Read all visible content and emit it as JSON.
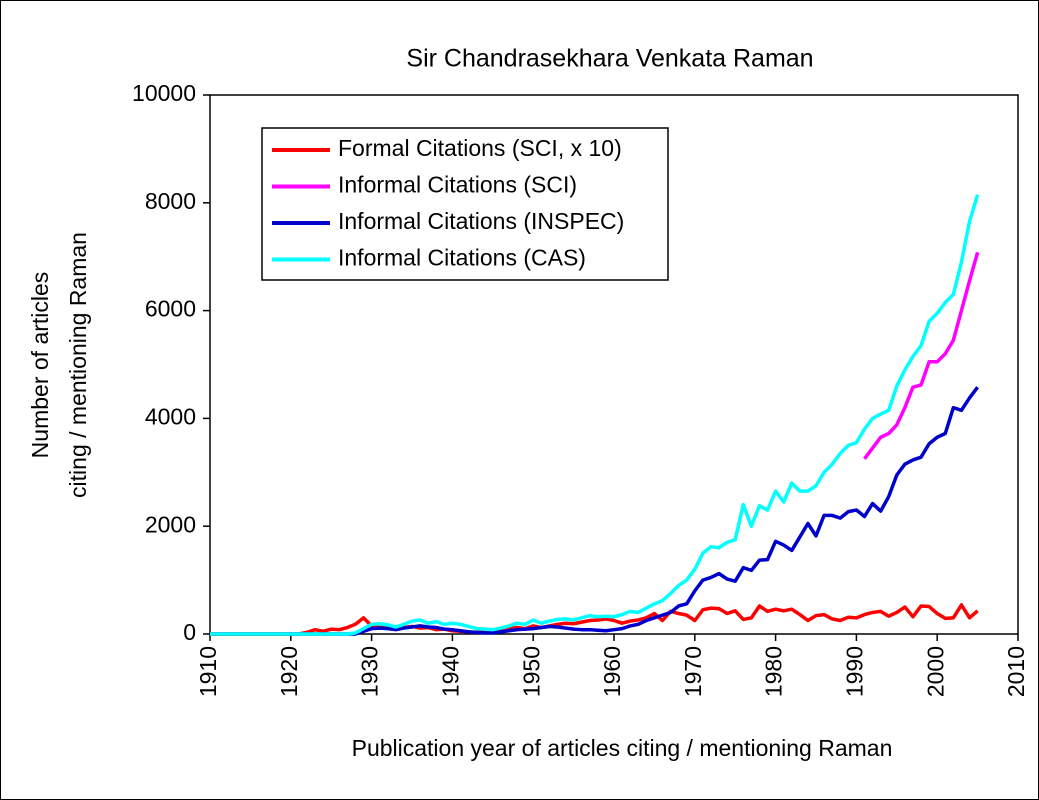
{
  "chart_data": {
    "type": "line",
    "title": "Sir Chandrasekhara Venkata Raman",
    "y_label": [
      "Number of articles",
      "citing / mentioning Raman"
    ],
    "x_label": "Publication year of articles citing / mentioning Raman",
    "xlim": [
      1910,
      2010
    ],
    "xticks": [
      1910,
      1920,
      1930,
      1940,
      1950,
      1960,
      1970,
      1980,
      1990,
      2000,
      2010
    ],
    "ylim": [
      0,
      10000
    ],
    "yticks": [
      0,
      2000,
      4000,
      6000,
      8000,
      10000
    ],
    "grid": false,
    "legend": "upper left",
    "x": [
      1910,
      1911,
      1912,
      1913,
      1914,
      1915,
      1916,
      1917,
      1918,
      1919,
      1920,
      1921,
      1922,
      1923,
      1924,
      1925,
      1926,
      1927,
      1928,
      1929,
      1930,
      1931,
      1932,
      1933,
      1934,
      1935,
      1936,
      1937,
      1938,
      1939,
      1940,
      1941,
      1942,
      1943,
      1944,
      1945,
      1946,
      1947,
      1948,
      1949,
      1950,
      1951,
      1952,
      1953,
      1954,
      1955,
      1956,
      1957,
      1958,
      1959,
      1960,
      1961,
      1962,
      1963,
      1964,
      1965,
      1966,
      1967,
      1968,
      1969,
      1970,
      1971,
      1972,
      1973,
      1974,
      1975,
      1976,
      1977,
      1978,
      1979,
      1980,
      1981,
      1982,
      1983,
      1984,
      1985,
      1986,
      1987,
      1988,
      1989,
      1990,
      1991,
      1992,
      1993,
      1994,
      1995,
      1996,
      1997,
      1998,
      1999,
      2000,
      2001,
      2002,
      2003,
      2004,
      2005
    ],
    "series": [
      {
        "name": "Formal Citations (SCI, x 10)",
        "color": "#ff0000",
        "values": [
          0,
          0,
          0,
          0,
          0,
          0,
          0,
          0,
          0,
          0,
          0,
          0,
          30,
          80,
          50,
          90,
          80,
          120,
          180,
          300,
          150,
          120,
          150,
          100,
          120,
          140,
          110,
          120,
          80,
          90,
          60,
          50,
          40,
          30,
          50,
          60,
          80,
          100,
          120,
          100,
          150,
          120,
          150,
          180,
          200,
          190,
          220,
          250,
          260,
          280,
          250,
          200,
          240,
          260,
          300,
          380,
          250,
          420,
          380,
          350,
          250,
          450,
          480,
          470,
          380,
          430,
          270,
          300,
          520,
          420,
          460,
          430,
          460,
          360,
          250,
          340,
          360,
          280,
          250,
          310,
          300,
          360,
          400,
          420,
          330,
          400,
          500,
          320,
          520,
          510,
          380,
          290,
          300,
          540,
          300,
          430
        ]
      },
      {
        "name": "Informal Citations (SCI)",
        "color": "#ff00ff",
        "values": [
          null,
          null,
          null,
          null,
          null,
          null,
          null,
          null,
          null,
          null,
          null,
          null,
          null,
          null,
          null,
          null,
          null,
          null,
          null,
          null,
          null,
          null,
          null,
          null,
          null,
          null,
          null,
          null,
          null,
          null,
          null,
          null,
          null,
          null,
          null,
          null,
          null,
          null,
          null,
          null,
          null,
          null,
          null,
          null,
          null,
          null,
          null,
          null,
          null,
          null,
          null,
          null,
          null,
          null,
          null,
          null,
          null,
          null,
          null,
          null,
          null,
          null,
          null,
          null,
          null,
          null,
          null,
          null,
          null,
          null,
          null,
          null,
          null,
          null,
          null,
          null,
          null,
          null,
          null,
          null,
          null,
          3250,
          3450,
          3650,
          3720,
          3880,
          4200,
          4580,
          4620,
          5050,
          5050,
          5200,
          5450,
          6000,
          6550,
          7080
        ]
      },
      {
        "name": "Informal Citations (INSPEC)",
        "color": "#0000cc",
        "values": [
          0,
          0,
          0,
          0,
          0,
          0,
          0,
          0,
          0,
          0,
          0,
          0,
          0,
          0,
          0,
          0,
          0,
          0,
          0,
          50,
          100,
          110,
          100,
          80,
          110,
          130,
          150,
          130,
          120,
          90,
          80,
          60,
          40,
          30,
          20,
          20,
          40,
          60,
          80,
          90,
          100,
          120,
          140,
          130,
          110,
          90,
          80,
          80,
          70,
          60,
          80,
          100,
          150,
          180,
          250,
          300,
          350,
          400,
          520,
          560,
          800,
          1000,
          1050,
          1120,
          1020,
          980,
          1230,
          1180,
          1370,
          1380,
          1720,
          1650,
          1550,
          1800,
          2050,
          1820,
          2200,
          2200,
          2150,
          2270,
          2300,
          2180,
          2420,
          2280,
          2550,
          2950,
          3150,
          3230,
          3280,
          3530,
          3650,
          3720,
          4200,
          4150,
          4380,
          4580
        ]
      },
      {
        "name": "Informal Citations (CAS)",
        "color": "#00ffff",
        "values": [
          0,
          0,
          0,
          0,
          0,
          0,
          0,
          0,
          0,
          0,
          0,
          0,
          0,
          0,
          0,
          0,
          0,
          0,
          20,
          100,
          180,
          190,
          170,
          130,
          180,
          240,
          260,
          200,
          230,
          180,
          200,
          180,
          140,
          100,
          90,
          80,
          110,
          150,
          200,
          180,
          260,
          200,
          240,
          270,
          280,
          260,
          300,
          340,
          320,
          330,
          320,
          360,
          420,
          400,
          480,
          560,
          620,
          750,
          900,
          1000,
          1200,
          1500,
          1620,
          1600,
          1700,
          1750,
          2400,
          2000,
          2380,
          2300,
          2650,
          2450,
          2800,
          2650,
          2650,
          2750,
          3000,
          3150,
          3350,
          3500,
          3550,
          3800,
          4000,
          4080,
          4150,
          4600,
          4900,
          5150,
          5350,
          5800,
          5950,
          6150,
          6300,
          6900,
          7650,
          8150
        ]
      }
    ]
  }
}
